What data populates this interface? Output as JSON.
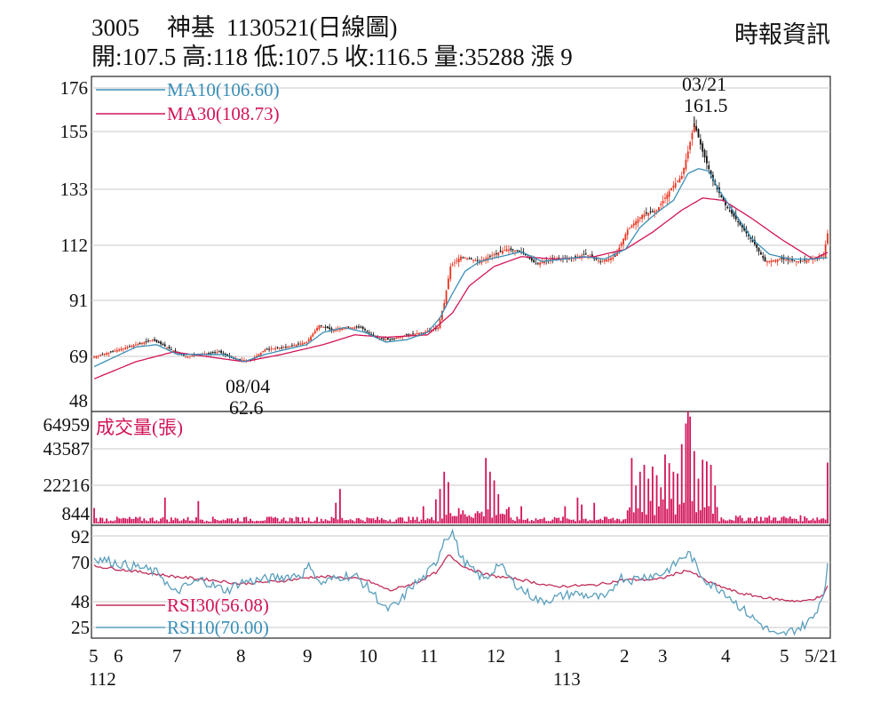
{
  "header": {
    "code": "3005",
    "name": "神基",
    "date_label": "1130521(日線圖)",
    "source": "時報資訊",
    "quote_line": "開:107.5 高:118 低:107.5 收:116.5 量:35288 漲 9"
  },
  "annotations": {
    "high_date": "03/21",
    "high_value": "161.5",
    "low_date": "08/04",
    "low_value": "62.6"
  },
  "colors": {
    "up": "#e8321e",
    "down": "#111111",
    "ma10": "#3a8fb7",
    "ma30": "#d2145a",
    "volume": "#d2145a",
    "rsi10": "#5a9fbd",
    "rsi30": "#c0305a",
    "grid": "#c8c8c8"
  },
  "chart_data": [
    {
      "type": "candlestick",
      "title": "3005 神基 1130521(日線圖)",
      "y_ticks": [
        176,
        155,
        133,
        112,
        91,
        69,
        48
      ],
      "ylim": [
        48,
        176
      ],
      "legend": [
        "MA10(106.60)",
        "MA30(108.73)"
      ],
      "close_anchors": [
        [
          0,
          66
        ],
        [
          8,
          68
        ],
        [
          20,
          71
        ],
        [
          28,
          73
        ],
        [
          37,
          69
        ],
        [
          44,
          66
        ],
        [
          50,
          67
        ],
        [
          60,
          68
        ],
        [
          68,
          65
        ],
        [
          75,
          64.5
        ],
        [
          82,
          69
        ],
        [
          92,
          70
        ],
        [
          102,
          72
        ],
        [
          108,
          79
        ],
        [
          114,
          77
        ],
        [
          122,
          78
        ],
        [
          128,
          78
        ],
        [
          135,
          74
        ],
        [
          142,
          73
        ],
        [
          150,
          75
        ],
        [
          158,
          76
        ],
        [
          165,
          78
        ],
        [
          168,
          88
        ],
        [
          171,
          103
        ],
        [
          176,
          107
        ],
        [
          185,
          105
        ],
        [
          192,
          108
        ],
        [
          198,
          110
        ],
        [
          205,
          109
        ],
        [
          212,
          104
        ],
        [
          220,
          106
        ],
        [
          228,
          106
        ],
        [
          236,
          108
        ],
        [
          243,
          105
        ],
        [
          250,
          107
        ],
        [
          256,
          118
        ],
        [
          263,
          124
        ],
        [
          270,
          126
        ],
        [
          277,
          135
        ],
        [
          282,
          140
        ],
        [
          285,
          150
        ],
        [
          288,
          161.5
        ],
        [
          292,
          150
        ],
        [
          297,
          138
        ],
        [
          303,
          128
        ],
        [
          310,
          120
        ],
        [
          317,
          112
        ],
        [
          322,
          105
        ],
        [
          330,
          106
        ],
        [
          338,
          105
        ],
        [
          345,
          106
        ],
        [
          350,
          107.5
        ],
        [
          352,
          116.5
        ]
      ],
      "ma10_anchors": [
        [
          0,
          62
        ],
        [
          10,
          66
        ],
        [
          20,
          70
        ],
        [
          30,
          71
        ],
        [
          40,
          67
        ],
        [
          50,
          67
        ],
        [
          62,
          67
        ],
        [
          72,
          64
        ],
        [
          82,
          67
        ],
        [
          92,
          69
        ],
        [
          102,
          71
        ],
        [
          110,
          76
        ],
        [
          120,
          78
        ],
        [
          130,
          76
        ],
        [
          140,
          72
        ],
        [
          150,
          73
        ],
        [
          160,
          76
        ],
        [
          166,
          82
        ],
        [
          172,
          92
        ],
        [
          178,
          101
        ],
        [
          185,
          105
        ],
        [
          195,
          107
        ],
        [
          205,
          109
        ],
        [
          215,
          105
        ],
        [
          225,
          106
        ],
        [
          235,
          107
        ],
        [
          245,
          106
        ],
        [
          255,
          110
        ],
        [
          262,
          119
        ],
        [
          270,
          125
        ],
        [
          278,
          130
        ],
        [
          285,
          141
        ],
        [
          290,
          143
        ],
        [
          295,
          142
        ],
        [
          300,
          134
        ],
        [
          308,
          124
        ],
        [
          316,
          114
        ],
        [
          324,
          108
        ],
        [
          334,
          106
        ],
        [
          344,
          106
        ],
        [
          352,
          106.6
        ]
      ],
      "ma30_anchors": [
        [
          0,
          57
        ],
        [
          20,
          64
        ],
        [
          38,
          68
        ],
        [
          55,
          66
        ],
        [
          72,
          64
        ],
        [
          90,
          67
        ],
        [
          110,
          71
        ],
        [
          125,
          75
        ],
        [
          140,
          74
        ],
        [
          160,
          75
        ],
        [
          172,
          84
        ],
        [
          180,
          95
        ],
        [
          192,
          103
        ],
        [
          205,
          107
        ],
        [
          222,
          106
        ],
        [
          240,
          107
        ],
        [
          255,
          110
        ],
        [
          268,
          117
        ],
        [
          282,
          126
        ],
        [
          292,
          131
        ],
        [
          302,
          130
        ],
        [
          315,
          123
        ],
        [
          330,
          114
        ],
        [
          345,
          106
        ],
        [
          352,
          108.73
        ]
      ]
    },
    {
      "type": "bar",
      "title": "成交量(張)",
      "y_ticks": [
        64959,
        43587,
        22216,
        844
      ],
      "ylim": [
        0,
        64959
      ],
      "spikes": [
        [
          0,
          9000
        ],
        [
          34,
          15000
        ],
        [
          50,
          13000
        ],
        [
          116,
          12000
        ],
        [
          118,
          20000
        ],
        [
          158,
          10000
        ],
        [
          164,
          14000
        ],
        [
          166,
          20000
        ],
        [
          168,
          30000
        ],
        [
          170,
          24000
        ],
        [
          188,
          38000
        ],
        [
          190,
          30000
        ],
        [
          192,
          25000
        ],
        [
          194,
          17000
        ],
        [
          205,
          10000
        ],
        [
          226,
          10000
        ],
        [
          232,
          15000
        ],
        [
          234,
          11000
        ],
        [
          240,
          12000
        ],
        [
          258,
          38000
        ],
        [
          260,
          22000
        ],
        [
          262,
          30000
        ],
        [
          264,
          34000
        ],
        [
          266,
          26000
        ],
        [
          268,
          33000
        ],
        [
          270,
          28000
        ],
        [
          272,
          21000
        ],
        [
          274,
          40000
        ],
        [
          276,
          35000
        ],
        [
          278,
          30000
        ],
        [
          280,
          29000
        ],
        [
          282,
          46000
        ],
        [
          284,
          58000
        ],
        [
          285,
          64959
        ],
        [
          286,
          62000
        ],
        [
          288,
          42000
        ],
        [
          290,
          26000
        ],
        [
          292,
          37000
        ],
        [
          294,
          36000
        ],
        [
          296,
          34000
        ],
        [
          298,
          22000
        ],
        [
          352,
          35288
        ]
      ]
    },
    {
      "type": "line",
      "title": "RSI",
      "y_ticks": [
        92,
        70,
        48,
        25
      ],
      "ylim": [
        17,
        97
      ],
      "legend": [
        "RSI30(56.08)",
        "RSI10(70.00)"
      ],
      "rsi10_anchors": [
        [
          0,
          76
        ],
        [
          6,
          74
        ],
        [
          14,
          71
        ],
        [
          22,
          69
        ],
        [
          32,
          64
        ],
        [
          38,
          50
        ],
        [
          44,
          55
        ],
        [
          52,
          60
        ],
        [
          58,
          55
        ],
        [
          64,
          52
        ],
        [
          70,
          58
        ],
        [
          80,
          60
        ],
        [
          90,
          62
        ],
        [
          100,
          64
        ],
        [
          104,
          71
        ],
        [
          108,
          57
        ],
        [
          114,
          60
        ],
        [
          120,
          63
        ],
        [
          126,
          62
        ],
        [
          134,
          50
        ],
        [
          140,
          38
        ],
        [
          146,
          42
        ],
        [
          152,
          55
        ],
        [
          158,
          61
        ],
        [
          164,
          72
        ],
        [
          168,
          90
        ],
        [
          172,
          95
        ],
        [
          176,
          76
        ],
        [
          182,
          66
        ],
        [
          188,
          60
        ],
        [
          194,
          72
        ],
        [
          200,
          60
        ],
        [
          206,
          52
        ],
        [
          214,
          44
        ],
        [
          222,
          47
        ],
        [
          230,
          50
        ],
        [
          238,
          48
        ],
        [
          246,
          46
        ],
        [
          252,
          62
        ],
        [
          258,
          60
        ],
        [
          266,
          63
        ],
        [
          272,
          64
        ],
        [
          278,
          70
        ],
        [
          282,
          76
        ],
        [
          286,
          79
        ],
        [
          290,
          66
        ],
        [
          296,
          56
        ],
        [
          302,
          52
        ],
        [
          310,
          40
        ],
        [
          316,
          32
        ],
        [
          322,
          25
        ],
        [
          328,
          18
        ],
        [
          334,
          22
        ],
        [
          340,
          26
        ],
        [
          345,
          32
        ],
        [
          350,
          50
        ],
        [
          352,
          70
        ]
      ],
      "rsi30_anchors": [
        [
          0,
          70
        ],
        [
          20,
          66
        ],
        [
          40,
          62
        ],
        [
          55,
          60
        ],
        [
          70,
          57
        ],
        [
          90,
          59
        ],
        [
          105,
          62
        ],
        [
          115,
          62
        ],
        [
          130,
          60
        ],
        [
          142,
          52
        ],
        [
          155,
          58
        ],
        [
          165,
          66
        ],
        [
          170,
          78
        ],
        [
          178,
          69
        ],
        [
          190,
          63
        ],
        [
          205,
          60
        ],
        [
          220,
          55
        ],
        [
          240,
          56
        ],
        [
          255,
          60
        ],
        [
          270,
          60
        ],
        [
          285,
          67
        ],
        [
          295,
          58
        ],
        [
          310,
          50
        ],
        [
          325,
          46
        ],
        [
          340,
          44
        ],
        [
          350,
          48
        ],
        [
          352,
          56.08
        ]
      ]
    }
  ],
  "x_axis": {
    "labels": [
      "5",
      "6",
      "7",
      "8",
      "9",
      "10",
      "11",
      "12",
      "1",
      "2",
      "3",
      "4",
      "5",
      "5/21"
    ],
    "year_labels": [
      "112",
      "113"
    ]
  }
}
